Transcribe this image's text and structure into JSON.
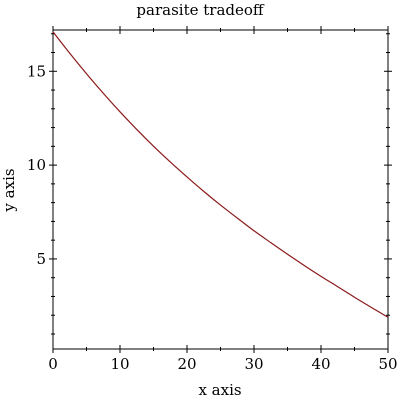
{
  "chart_data": {
    "type": "line",
    "title": "parasite tradeoff",
    "xlabel": "x axis",
    "ylabel": "y axis",
    "xlim": [
      0,
      50
    ],
    "ylim": [
      0.2,
      17.2
    ],
    "x_ticks": [
      0,
      10,
      20,
      30,
      40,
      50
    ],
    "y_ticks": [
      5,
      10,
      15
    ],
    "grid": false,
    "line_color": "#8b1a1a",
    "series": [
      {
        "x": [
          0,
          2.5,
          5,
          7.5,
          10,
          12.5,
          15,
          17.5,
          20,
          22.5,
          25,
          27.5,
          30,
          32.5,
          35,
          37.5,
          40,
          42.5,
          45,
          47.5,
          50
        ],
        "y": [
          17.1,
          15.96,
          14.87,
          13.83,
          12.84,
          11.9,
          11.01,
          10.17,
          9.37,
          8.6,
          7.87,
          7.18,
          6.5,
          5.87,
          5.25,
          4.65,
          4.07,
          3.52,
          2.96,
          2.42,
          1.89
        ]
      }
    ]
  }
}
